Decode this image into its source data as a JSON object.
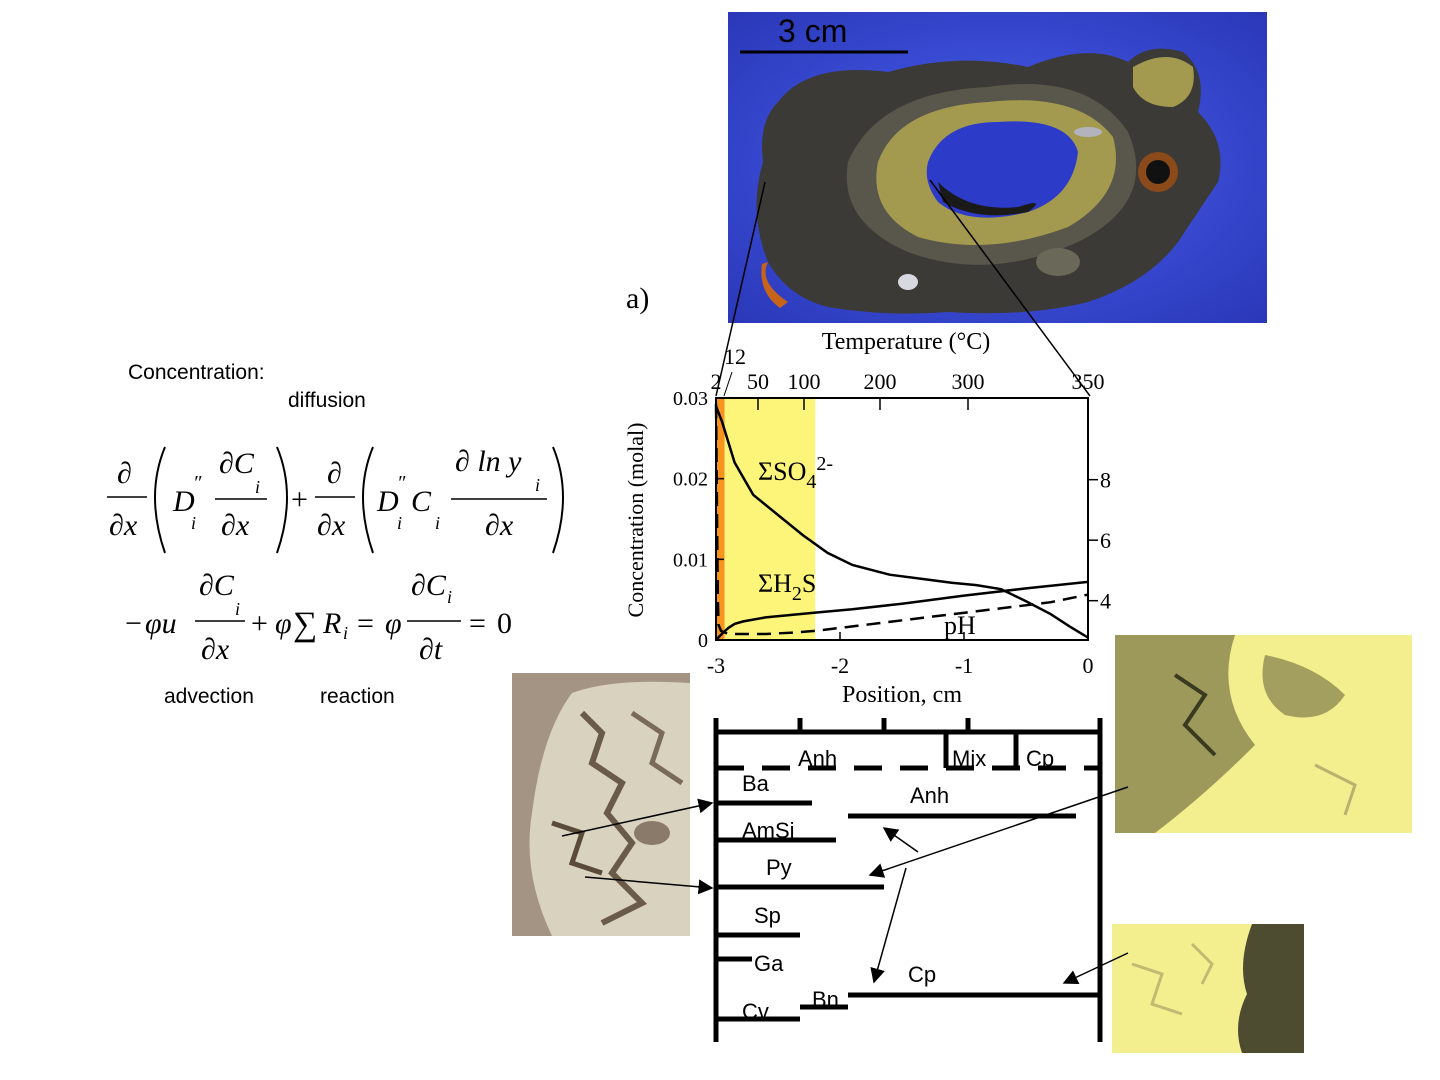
{
  "equation": {
    "title": "Concentration:",
    "label_diffusion": "diffusion",
    "label_advection": "advection",
    "label_reaction": "reaction"
  },
  "photo": {
    "scale_label": "3 cm",
    "panel_label": "a)"
  },
  "chart_data": {
    "type": "line",
    "title": "",
    "top_axis_label": "Temperature (°C)",
    "top_ticks": [
      "2",
      "12",
      "50",
      "100",
      "200",
      "300",
      "350"
    ],
    "xlabel": "Position, cm",
    "x_ticks": [
      "-3",
      "-2",
      "-1",
      "0"
    ],
    "xlim": [
      -3,
      0
    ],
    "ylabel": "Concentration (molal)",
    "y_ticks": [
      "0",
      "0.01",
      "0.02",
      "0.03"
    ],
    "ylim": [
      0,
      0.03
    ],
    "right_ticks": [
      "4",
      "6",
      "8"
    ],
    "right_lim": [
      2.7,
      10.7
    ],
    "zones": [
      {
        "from": -3.0,
        "to": -2.93,
        "color": "#f7941d"
      },
      {
        "from": -2.93,
        "to": -2.2,
        "color": "#fdf57a"
      }
    ],
    "series": [
      {
        "name": "ΣSO4 2-",
        "axis": "left",
        "style": "solid",
        "x": [
          -3.0,
          -2.95,
          -2.85,
          -2.7,
          -2.5,
          -2.3,
          -2.1,
          -1.9,
          -1.6,
          -1.3,
          -1.1,
          -0.9,
          -0.7,
          -0.5,
          -0.3,
          -0.15,
          0.0
        ],
        "y": [
          0.029,
          0.027,
          0.022,
          0.018,
          0.0155,
          0.013,
          0.0108,
          0.0093,
          0.0081,
          0.0075,
          0.0071,
          0.0068,
          0.0063,
          0.0048,
          0.0032,
          0.0017,
          0.0003
        ]
      },
      {
        "name": "ΣH2S",
        "axis": "left",
        "style": "solid",
        "x": [
          -3.0,
          -2.95,
          -2.9,
          -2.85,
          -2.78,
          -2.6,
          -2.4,
          -2.2,
          -1.9,
          -1.5,
          -1.0,
          -0.5,
          0.0
        ],
        "y": [
          0.0,
          0.0008,
          0.0015,
          0.002,
          0.0023,
          0.0028,
          0.0031,
          0.0034,
          0.0038,
          0.0045,
          0.0055,
          0.0064,
          0.0072
        ]
      },
      {
        "name": "pH",
        "axis": "right",
        "style": "dashed",
        "x": [
          -3.0,
          -2.995,
          -2.99,
          -2.985,
          -2.98,
          -2.96,
          -2.9,
          -2.8,
          -2.6,
          -2.35,
          -2.2,
          -1.8,
          -1.3,
          -0.8,
          -0.3,
          0.0
        ],
        "y": [
          10.5,
          8.5,
          6.0,
          4.0,
          3.2,
          3.0,
          2.9,
          2.9,
          2.9,
          2.95,
          3.0,
          3.2,
          3.45,
          3.7,
          3.95,
          4.2
        ]
      }
    ],
    "annotations": [
      {
        "text": "ΣSO",
        "sub": "4",
        "sup": "2-"
      },
      {
        "text": "ΣH",
        "sub": "2",
        "after": "S"
      },
      {
        "text": "pH"
      }
    ]
  },
  "minerals": {
    "labels": {
      "anh_top": "Anh",
      "mix": "Mix",
      "cp_top": "Cp",
      "ba": "Ba",
      "anh": "Anh",
      "amsi": "AmSi",
      "py": "Py",
      "sp": "Sp",
      "ga": "Ga",
      "cp": "Cp",
      "bn": "Bn",
      "cv": "Cv"
    }
  },
  "colors": {
    "photo_blue": "#3a4fd8",
    "rock_dark": "#3b3a36",
    "chalcopyrite_gold": "#a39a4f",
    "micro_yellow": "#f3ef8e",
    "orange_zone": "#f7941d",
    "yellow_zone": "#fdf57a"
  }
}
